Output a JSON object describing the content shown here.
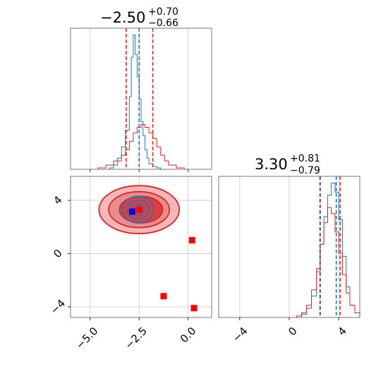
{
  "chart_data": [
    {
      "type": "histogram",
      "panel": "top-left",
      "title_main": "−2.50",
      "title_plus": "+0.70",
      "title_minus": "−0.66",
      "xlim": [
        -6.0,
        1.2
      ],
      "grid": true,
      "series": [
        {
          "name": "",
          "color": "#1f77b4",
          "bin_edges": [
            -4.0,
            -3.8,
            -3.6,
            -3.4,
            -3.2,
            -3.0,
            -2.9,
            -2.8,
            -2.7,
            -2.6,
            -2.5,
            -2.4,
            -2.3,
            -2.2,
            -2.1,
            -2.0,
            -1.8,
            -1.6,
            -1.4
          ],
          "counts": [
            1,
            3,
            8,
            16,
            28,
            52,
            80,
            96,
            82,
            66,
            50,
            34,
            24,
            14,
            8,
            4,
            2,
            1
          ]
        },
        {
          "name": "",
          "color": "#d62728",
          "bin_edges": [
            -4.6,
            -4.2,
            -3.8,
            -3.4,
            -3.2,
            -3.0,
            -2.8,
            -2.6,
            -2.4,
            -2.2,
            -2.0,
            -1.8,
            -1.6,
            -1.4,
            -1.2,
            -1.0,
            -0.6,
            -0.2
          ],
          "counts": [
            1,
            3,
            6,
            10,
            14,
            20,
            26,
            30,
            32,
            30,
            26,
            22,
            16,
            10,
            6,
            3,
            1
          ]
        }
      ],
      "vlines": [
        {
          "x": -3.16,
          "color": "#d62728",
          "style": "dashed"
        },
        {
          "x": -1.8,
          "color": "#d62728",
          "style": "dashed"
        },
        {
          "x": -2.5,
          "color": "#1f77b4",
          "style": "dashed"
        }
      ]
    },
    {
      "type": "scatter",
      "panel": "bottom-left",
      "xlim": [
        -6.0,
        1.2
      ],
      "ylim": [
        -4.8,
        5.8
      ],
      "xticks": [
        -5.0,
        -2.5,
        0.0
      ],
      "xtick_labels": [
        "−5.0",
        "−2.5",
        "0.0"
      ],
      "yticks": [
        4,
        0,
        -4
      ],
      "ytick_labels": [
        "4",
        "0",
        "−4"
      ],
      "grid": true,
      "points": [
        {
          "x": -2.85,
          "y": 3.15,
          "color": "#0000ff",
          "marker": "square"
        },
        {
          "x": -2.5,
          "y": 3.3,
          "color": "#ff0000",
          "marker": "square"
        },
        {
          "x": 0.2,
          "y": 1.0,
          "color": "#ff0000",
          "marker": "square"
        },
        {
          "x": -1.25,
          "y": -3.2,
          "color": "#ff0000",
          "marker": "square"
        },
        {
          "x": 0.3,
          "y": -4.1,
          "color": "#ff0000",
          "marker": "square"
        }
      ],
      "contours": [
        {
          "color": "#d62728",
          "fill": "#f4b3b3",
          "cx": -2.5,
          "cy": 3.3,
          "rx": 2.05,
          "ry": 1.8
        },
        {
          "color": "#d62728",
          "fill": "#e8898a",
          "cx": -2.5,
          "cy": 3.3,
          "rx": 1.55,
          "ry": 1.35
        },
        {
          "color": "#d62728",
          "fill": "#e0393a",
          "cx": -2.4,
          "cy": 3.3,
          "rx": 1.1,
          "ry": 1.0
        },
        {
          "color": "#1f77b4",
          "fill": "none",
          "cx": -2.55,
          "cy": 3.3,
          "rx": 0.8,
          "ry": 1.0
        },
        {
          "color": "#1f77b4",
          "fill": "none",
          "cx": -2.55,
          "cy": 3.3,
          "rx": 0.55,
          "ry": 0.7
        },
        {
          "color": "#1f77b4",
          "fill": "none",
          "cx": -2.55,
          "cy": 3.3,
          "rx": 0.3,
          "ry": 0.4
        }
      ]
    },
    {
      "type": "histogram",
      "panel": "bottom-right",
      "title_main": "3.30",
      "title_plus": "+0.81",
      "title_minus": "−0.79",
      "xlim": [
        -5.7,
        5.7
      ],
      "xticks": [
        -4,
        0,
        4
      ],
      "xtick_labels": [
        "−4",
        "0",
        "4"
      ],
      "grid": true,
      "series": [
        {
          "name": "",
          "color": "#1f77b4",
          "bin_edges": [
            1.0,
            1.4,
            1.8,
            2.2,
            2.5,
            2.8,
            3.1,
            3.4,
            3.7,
            4.0,
            4.3,
            4.6,
            4.9,
            5.3,
            5.7
          ],
          "counts": [
            2,
            6,
            14,
            30,
            48,
            66,
            80,
            88,
            82,
            64,
            40,
            20,
            8,
            3
          ]
        },
        {
          "name": "",
          "color": "#d62728",
          "bin_edges": [
            0.6,
            1.0,
            1.4,
            1.8,
            2.2,
            2.5,
            2.8,
            3.1,
            3.4,
            3.7,
            4.0,
            4.3,
            4.6,
            4.9,
            5.3,
            5.7
          ],
          "counts": [
            1,
            3,
            8,
            18,
            32,
            48,
            62,
            72,
            68,
            56,
            42,
            28,
            16,
            8,
            3
          ]
        }
      ],
      "vlines": [
        {
          "x": 2.51,
          "color": "#d62728",
          "style": "dashed"
        },
        {
          "x": 4.11,
          "color": "#d62728",
          "style": "dashed"
        },
        {
          "x": 3.8,
          "color": "#1f77b4",
          "style": "dashed"
        },
        {
          "x": 2.48,
          "color": "#1f77b4",
          "style": "dashed"
        }
      ]
    }
  ]
}
